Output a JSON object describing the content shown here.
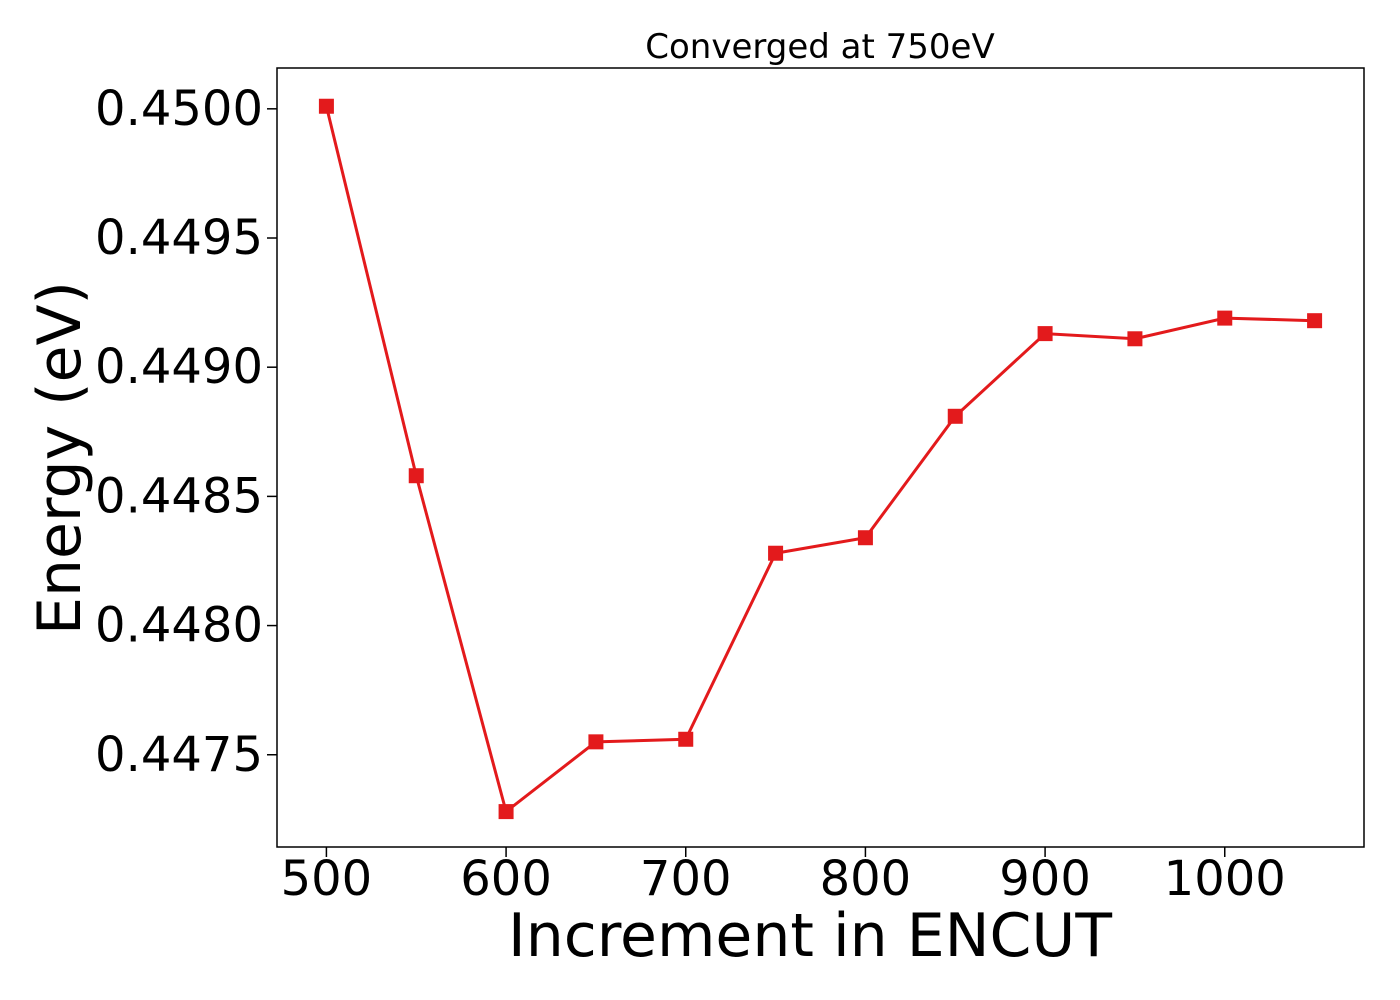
{
  "chart_data": {
    "type": "line",
    "title": "Converged at 750eV",
    "xlabel": "Increment in ENCUT",
    "ylabel": "Energy (eV)",
    "x": [
      500,
      550,
      600,
      650,
      700,
      750,
      800,
      850,
      900,
      950,
      1000,
      1050
    ],
    "series": [
      {
        "values": [
          0.45001,
          0.44858,
          0.44728,
          0.44755,
          0.44756,
          0.44828,
          0.44834,
          0.44881,
          0.44913,
          0.44911,
          0.44919,
          0.44918
        ],
        "color": "#e31a1c",
        "marker": "square"
      }
    ],
    "xlim": [
      472.5,
      1077.5
    ],
    "ylim": [
      0.447143,
      0.450158
    ],
    "xticks": [
      500,
      600,
      700,
      800,
      900,
      1000
    ],
    "yticks": [
      0.4475,
      0.448,
      0.4485,
      0.449,
      0.4495,
      0.45
    ],
    "xtick_labels": [
      "500",
      "600",
      "700",
      "800",
      "900",
      "1000"
    ],
    "ytick_labels": [
      "0.4475",
      "0.4480",
      "0.4485",
      "0.4490",
      "0.4495",
      "0.4500"
    ],
    "grid": false,
    "legend": "none"
  }
}
